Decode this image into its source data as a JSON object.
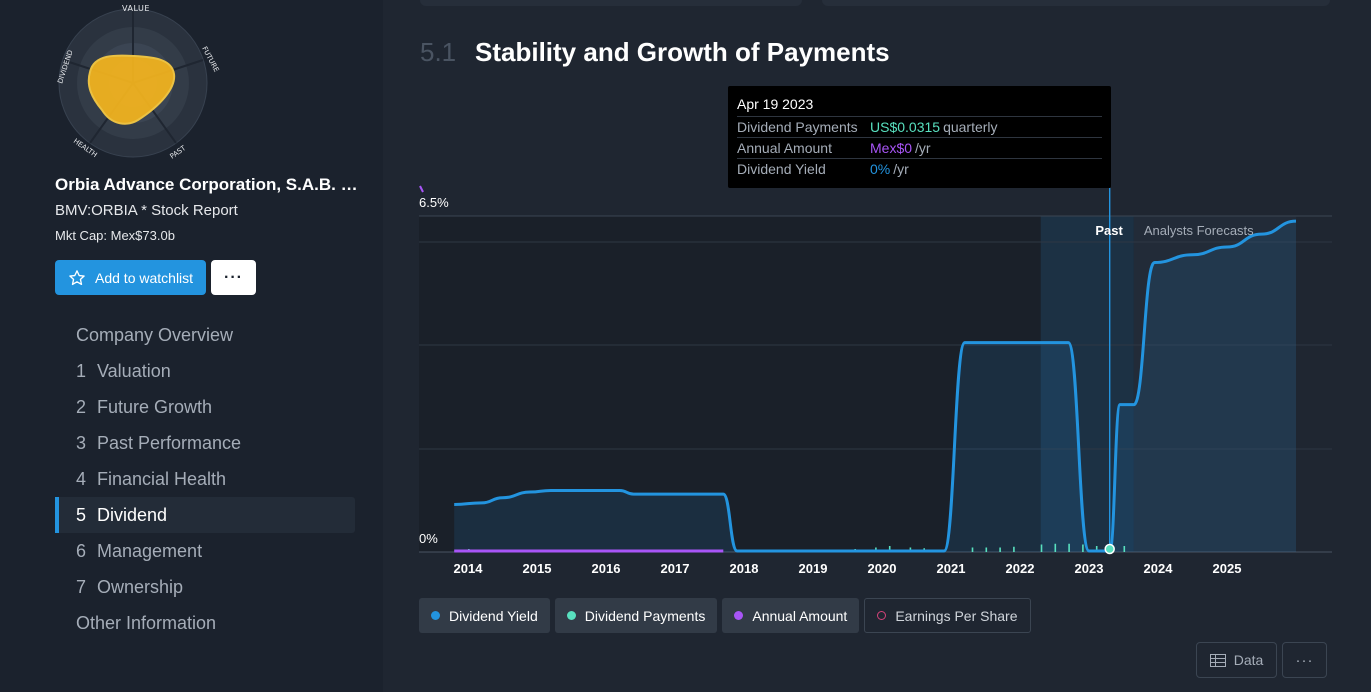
{
  "company": {
    "name": "Orbia Advance Corporation, S.A.B. de C.V.",
    "ticker": "BMV:ORBIA * Stock Report",
    "mkt_cap": "Mkt Cap: Mex$73.0b",
    "watch_label": "Add to watchlist",
    "more_label": "···"
  },
  "snowflake": {
    "labels": {
      "value": "VALUE",
      "future": "FUTURE",
      "past": "PAST",
      "health": "HEALTH",
      "dividend": "DIVIDEND"
    },
    "scores": {
      "value": 4,
      "future": 3,
      "past": 3,
      "health": 3,
      "dividend": 5
    }
  },
  "nav": {
    "overview": "Company Overview",
    "items": [
      {
        "num": "1",
        "label": "Valuation"
      },
      {
        "num": "2",
        "label": "Future Growth"
      },
      {
        "num": "3",
        "label": "Past Performance"
      },
      {
        "num": "4",
        "label": "Financial Health"
      },
      {
        "num": "5",
        "label": "Dividend"
      },
      {
        "num": "6",
        "label": "Management"
      },
      {
        "num": "7",
        "label": "Ownership"
      }
    ],
    "other": "Other Information"
  },
  "section": {
    "num": "5.1",
    "title": "Stability and Growth of Payments"
  },
  "tooltip": {
    "date": "Apr 19 2023",
    "rows": [
      {
        "label": "Dividend Payments",
        "value": "US$0.0315",
        "unit": "quarterly",
        "color": "#58e0bf"
      },
      {
        "label": "Annual Amount",
        "value": "Mex$0",
        "unit": "/yr",
        "color": "#a855f7"
      },
      {
        "label": "Dividend Yield",
        "value": "0%",
        "unit": "/yr",
        "color": "#2394df"
      }
    ]
  },
  "legend": {
    "yield": "Dividend Yield",
    "payments": "Dividend Payments",
    "annual": "Annual Amount",
    "eps": "Earnings Per Share"
  },
  "buttons": {
    "data": "Data",
    "more": "···"
  },
  "colors": {
    "yield": "#2394df",
    "payments": "#58e0bf",
    "annual": "#a855f7",
    "eps": "#d3437a"
  },
  "chart_data": {
    "type": "line",
    "title": "Stability and Growth of Payments",
    "y_tick_labels": [
      "0%",
      "6.5%"
    ],
    "ylim": [
      0,
      6.5
    ],
    "x_tick_labels": [
      "2014",
      "2015",
      "2016",
      "2017",
      "2018",
      "2019",
      "2020",
      "2021",
      "2022",
      "2023",
      "2024",
      "2025"
    ],
    "region_labels": {
      "past": "Past",
      "forecast": "Analysts Forecasts"
    },
    "past_forecast_split": 2023.65,
    "series": [
      {
        "name": "Dividend Yield",
        "unit": "%",
        "points": [
          [
            2013.8,
            0.92
          ],
          [
            2014.2,
            0.95
          ],
          [
            2014.5,
            1.05
          ],
          [
            2014.9,
            1.16
          ],
          [
            2015.2,
            1.19
          ],
          [
            2016.2,
            1.19
          ],
          [
            2016.4,
            1.12
          ],
          [
            2017.7,
            1.12
          ],
          [
            2017.9,
            0.02
          ],
          [
            2020.9,
            0.02
          ],
          [
            2021.2,
            4.05
          ],
          [
            2022.7,
            4.05
          ],
          [
            2023.0,
            0.02
          ],
          [
            2023.3,
            0.02
          ],
          [
            2023.45,
            2.85
          ],
          [
            2023.65,
            2.85
          ],
          [
            2023.95,
            5.6
          ],
          [
            2024.5,
            5.75
          ],
          [
            2025.0,
            5.9
          ],
          [
            2025.5,
            6.15
          ],
          [
            2026.0,
            6.4
          ]
        ]
      },
      {
        "name": "Dividend Payments",
        "unit": "US$",
        "x": [
          2014.0,
          2018.4,
          2018.7,
          2019.0,
          2019.3,
          2019.6,
          2019.9,
          2020.1,
          2020.4,
          2020.6,
          2021.3,
          2021.5,
          2021.7,
          2021.9,
          2022.3,
          2022.5,
          2022.7,
          2022.9,
          2023.1,
          2023.3,
          2023.5
        ],
        "values": [
          0.004,
          0.003,
          0.003,
          0.003,
          0.003,
          0.004,
          0.006,
          0.008,
          0.006,
          0.005,
          0.006,
          0.006,
          0.006,
          0.007,
          0.01,
          0.011,
          0.011,
          0.01,
          0.008,
          0.0315,
          0.008
        ]
      },
      {
        "name": "Annual Amount",
        "unit": "Mex$",
        "points": [
          [
            2013.8,
            0.0
          ],
          [
            2017.7,
            0.0
          ]
        ]
      }
    ]
  }
}
